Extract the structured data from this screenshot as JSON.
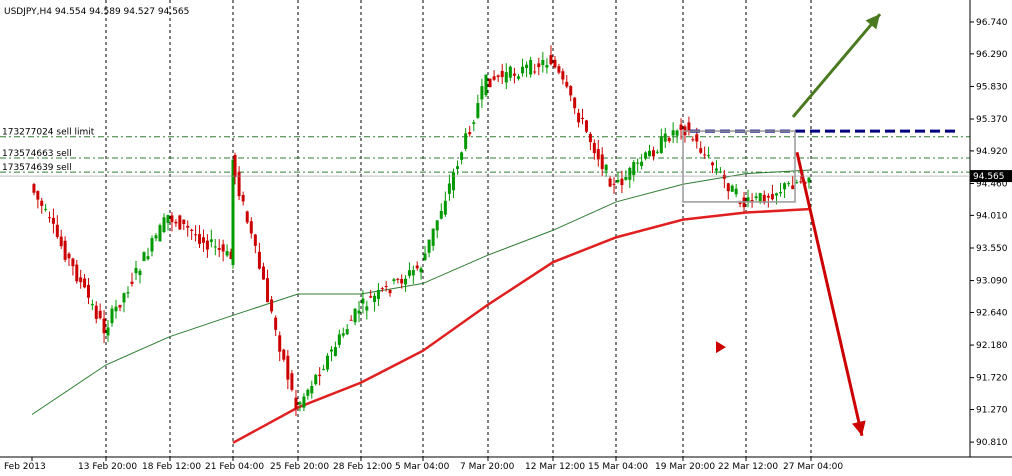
{
  "header": {
    "symbol_timeframe": "USDJPY,H4",
    "ohlc": "94.554 94.589 94.527 94.565"
  },
  "order_labels": [
    {
      "text": "173277024 sell limit",
      "price": 95.12
    },
    {
      "text": "173574663 sell",
      "price": 94.82
    },
    {
      "text": "173574639 sell",
      "price": 94.62
    }
  ],
  "current_price_label": "94.565",
  "colors": {
    "up_candle": "#009900",
    "down_candle": "#cc0000",
    "ma_fast": "#2f7d32",
    "ma_slow": "#e02020",
    "order_line": "#2f7d32",
    "resistance": "#000080",
    "arrow_up": "#4a7a20",
    "arrow_down": "#cc0000",
    "grid": "#000000"
  },
  "chart_data": {
    "type": "line",
    "title": "USDJPY,H4",
    "ylim": [
      90.6,
      97.05
    ],
    "y_ticks": [
      "96.740",
      "96.290",
      "95.830",
      "95.370",
      "94.920",
      "94.460",
      "94.010",
      "93.550",
      "93.090",
      "92.640",
      "92.180",
      "91.720",
      "91.270",
      "90.810"
    ],
    "x_ticks": [
      "Feb 2013",
      "13 Feb 20:00",
      "18 Feb 12:00",
      "21 Feb 04:00",
      "25 Feb 20:00",
      "28 Feb 12:00",
      "5 Mar 04:00",
      "7 Mar 20:00",
      "12 Mar 12:00",
      "15 Mar 04:00",
      "19 Mar 20:00",
      "22 Mar 12:00",
      "27 Mar 04:00"
    ],
    "price_close_path": [
      {
        "x": "Feb 2013",
        "y": 94.45
      },
      {
        "x": "13 Feb 20:00",
        "y": 92.4
      },
      {
        "x": "18 Feb 12:00",
        "y": 94.0
      },
      {
        "x": "21 Feb 04:00",
        "y": 93.4
      },
      {
        "x": "21 Feb 04:00",
        "y": 94.8
      },
      {
        "x": "25 Feb 20:00",
        "y": 91.3
      },
      {
        "x": "28 Feb 12:00",
        "y": 92.7
      },
      {
        "x": "5 Mar 04:00",
        "y": 93.3
      },
      {
        "x": "7 Mar 20:00",
        "y": 95.9
      },
      {
        "x": "12 Mar 12:00",
        "y": 96.2
      },
      {
        "x": "15 Mar 04:00",
        "y": 94.4
      },
      {
        "x": "19 Mar 20:00",
        "y": 95.3
      },
      {
        "x": "22 Mar 12:00",
        "y": 94.15
      },
      {
        "x": "27 Mar 04:00",
        "y": 94.565
      }
    ],
    "series": [
      {
        "style": "fast moving average",
        "points": [
          {
            "x": "Feb 2013",
            "y": 91.2
          },
          {
            "x": "13 Feb 20:00",
            "y": 91.9
          },
          {
            "x": "18 Feb 12:00",
            "y": 92.3
          },
          {
            "x": "21 Feb 04:00",
            "y": 92.6
          },
          {
            "x": "25 Feb 20:00",
            "y": 92.9
          },
          {
            "x": "28 Feb 12:00",
            "y": 92.9
          },
          {
            "x": "5 Mar 04:00",
            "y": 93.05
          },
          {
            "x": "7 Mar 20:00",
            "y": 93.45
          },
          {
            "x": "12 Mar 12:00",
            "y": 93.8
          },
          {
            "x": "15 Mar 04:00",
            "y": 94.2
          },
          {
            "x": "19 Mar 20:00",
            "y": 94.45
          },
          {
            "x": "22 Mar 12:00",
            "y": 94.6
          },
          {
            "x": "27 Mar 04:00",
            "y": 94.65
          }
        ]
      },
      {
        "style": "slow moving average",
        "points": [
          {
            "x": "21 Feb 04:00",
            "y": 90.8
          },
          {
            "x": "25 Feb 20:00",
            "y": 91.3
          },
          {
            "x": "28 Feb 12:00",
            "y": 91.65
          },
          {
            "x": "5 Mar 04:00",
            "y": 92.1
          },
          {
            "x": "7 Mar 20:00",
            "y": 92.75
          },
          {
            "x": "12 Mar 12:00",
            "y": 93.35
          },
          {
            "x": "15 Mar 04:00",
            "y": 93.7
          },
          {
            "x": "19 Mar 20:00",
            "y": 93.95
          },
          {
            "x": "22 Mar 12:00",
            "y": 94.05
          },
          {
            "x": "27 Mar 04:00",
            "y": 94.1
          }
        ]
      }
    ],
    "horizontal_lines": [
      95.12,
      94.82,
      94.62
    ],
    "resistance_level": 95.2,
    "annotations": [
      {
        "kind": "arrow",
        "direction": "up",
        "from": {
          "x": "27 Mar 04:00",
          "y": 95.4
        }
      },
      {
        "kind": "arrow",
        "direction": "down",
        "from": {
          "x": "27 Mar 04:00",
          "y": 94.9
        }
      },
      {
        "kind": "box",
        "from": {
          "x": "19 Mar 20:00",
          "y": 95.2
        },
        "to": {
          "x": "27 Mar 04:00",
          "y": 94.2
        }
      },
      {
        "kind": "triangle-marker",
        "at": {
          "x": "22 Mar 12:00",
          "y": 92.15
        }
      }
    ],
    "grid": "vertical dashed",
    "legend": "none"
  }
}
